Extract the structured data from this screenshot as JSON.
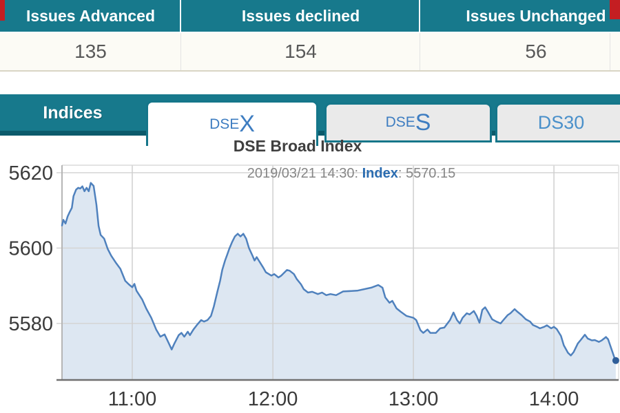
{
  "table": {
    "columns": [
      {
        "header": "Issues Advanced",
        "value": "135"
      },
      {
        "header": "Issues declined",
        "value": "154"
      },
      {
        "header": "Issues Unchanged",
        "value": "56"
      }
    ]
  },
  "tabs": {
    "panel_label": "Indices",
    "items": [
      {
        "small": "DSE",
        "big": "X",
        "active": true
      },
      {
        "small": "DSE",
        "big": "S",
        "active": false
      },
      {
        "label": "DS30",
        "active": false
      }
    ]
  },
  "chart": {
    "title": "DSE Broad Index",
    "subtitle_prefix": "2019/03/21 14:30: ",
    "subtitle_label": "Index",
    "subtitle_suffix": ": 5570.15"
  },
  "colors": {
    "teal": "#17798c",
    "teal_dark": "#0b5a6b",
    "red_fragment": "#c41e22",
    "tab_text_blue": "#3e7dc1",
    "ds30_text_blue": "#4a90ca",
    "index_label_blue": "#2b6cb0"
  },
  "chart_data": {
    "type": "area",
    "title": "DSE Broad Index",
    "subtitle": "2019/03/21 14:30: Index: 5570.15",
    "last_update": {
      "date": "2019/03/21",
      "time": "14:30",
      "label": "Index",
      "value": 5570.15
    },
    "xlabel": "",
    "ylabel": "",
    "x_unit": "hour-of-day",
    "xlim": [
      10.5,
      14.46
    ],
    "ylim": [
      5565,
      5622
    ],
    "grid": true,
    "legend": false,
    "x_ticks": [
      {
        "hour": 11,
        "label": "11:00"
      },
      {
        "hour": 12,
        "label": "12:00"
      },
      {
        "hour": 13,
        "label": "13:00"
      },
      {
        "hour": 14,
        "label": "14:00"
      }
    ],
    "y_ticks": [
      {
        "value": 5620,
        "label": "5620"
      },
      {
        "value": 5600,
        "label": "5600"
      },
      {
        "value": 5580,
        "label": "5580"
      }
    ],
    "colors": {
      "line": "#4f81bd",
      "area": "#dde7f2",
      "marker": "#2f5e99",
      "grid": "#d4d4d4",
      "grid_v": "#cfcfcf"
    },
    "series": [
      {
        "name": "DSEX Index",
        "points": [
          [
            10.5,
            5606.0
          ],
          [
            10.51,
            5607.5
          ],
          [
            10.525,
            5606.5
          ],
          [
            10.54,
            5608.4
          ],
          [
            10.555,
            5609.6
          ],
          [
            10.57,
            5610.7
          ],
          [
            10.582,
            5613.8
          ],
          [
            10.6,
            5615.5
          ],
          [
            10.615,
            5616.0
          ],
          [
            10.63,
            5615.8
          ],
          [
            10.645,
            5616.4
          ],
          [
            10.66,
            5615.1
          ],
          [
            10.675,
            5616.0
          ],
          [
            10.69,
            5615.1
          ],
          [
            10.705,
            5617.3
          ],
          [
            10.725,
            5616.5
          ],
          [
            10.745,
            5611.5
          ],
          [
            10.76,
            5605.9
          ],
          [
            10.775,
            5603.5
          ],
          [
            10.8,
            5602.5
          ],
          [
            10.825,
            5599.8
          ],
          [
            10.85,
            5598.0
          ],
          [
            10.885,
            5596.0
          ],
          [
            10.915,
            5594.5
          ],
          [
            10.95,
            5591.3
          ],
          [
            10.975,
            5590.4
          ],
          [
            11.0,
            5589.6
          ],
          [
            11.015,
            5590.5
          ],
          [
            11.03,
            5588.7
          ],
          [
            11.07,
            5586.4
          ],
          [
            11.1,
            5583.9
          ],
          [
            11.135,
            5581.5
          ],
          [
            11.17,
            5578.4
          ],
          [
            11.2,
            5576.5
          ],
          [
            11.23,
            5577.1
          ],
          [
            11.26,
            5574.7
          ],
          [
            11.28,
            5573.1
          ],
          [
            11.3,
            5574.7
          ],
          [
            11.33,
            5576.9
          ],
          [
            11.35,
            5577.5
          ],
          [
            11.37,
            5576.5
          ],
          [
            11.395,
            5577.8
          ],
          [
            11.41,
            5576.9
          ],
          [
            11.435,
            5578.4
          ],
          [
            11.46,
            5579.6
          ],
          [
            11.49,
            5580.9
          ],
          [
            11.51,
            5580.5
          ],
          [
            11.535,
            5580.9
          ],
          [
            11.56,
            5582.0
          ],
          [
            11.58,
            5584.5
          ],
          [
            11.605,
            5588.4
          ],
          [
            11.625,
            5591.3
          ],
          [
            11.64,
            5594.2
          ],
          [
            11.66,
            5596.7
          ],
          [
            11.675,
            5598.2
          ],
          [
            11.69,
            5599.8
          ],
          [
            11.71,
            5601.6
          ],
          [
            11.73,
            5603.1
          ],
          [
            11.75,
            5603.8
          ],
          [
            11.77,
            5603.1
          ],
          [
            11.79,
            5603.8
          ],
          [
            11.81,
            5602.5
          ],
          [
            11.83,
            5600.0
          ],
          [
            11.855,
            5598.0
          ],
          [
            11.87,
            5596.7
          ],
          [
            11.885,
            5597.6
          ],
          [
            11.9,
            5596.7
          ],
          [
            11.93,
            5594.9
          ],
          [
            11.95,
            5593.6
          ],
          [
            11.99,
            5592.7
          ],
          [
            12.01,
            5593.1
          ],
          [
            12.04,
            5592.2
          ],
          [
            12.06,
            5592.7
          ],
          [
            12.1,
            5594.2
          ],
          [
            12.12,
            5594.0
          ],
          [
            12.15,
            5593.1
          ],
          [
            12.17,
            5591.8
          ],
          [
            12.2,
            5590.4
          ],
          [
            12.22,
            5589.1
          ],
          [
            12.25,
            5588.2
          ],
          [
            12.28,
            5588.4
          ],
          [
            12.32,
            5587.8
          ],
          [
            12.35,
            5588.2
          ],
          [
            12.38,
            5587.5
          ],
          [
            12.41,
            5587.8
          ],
          [
            12.45,
            5587.5
          ],
          [
            12.5,
            5588.5
          ],
          [
            12.6,
            5588.7
          ],
          [
            12.7,
            5589.5
          ],
          [
            12.75,
            5590.2
          ],
          [
            12.78,
            5589.5
          ],
          [
            12.8,
            5586.9
          ],
          [
            12.83,
            5585.5
          ],
          [
            12.85,
            5586.0
          ],
          [
            12.88,
            5584.0
          ],
          [
            12.91,
            5583.1
          ],
          [
            12.95,
            5582.0
          ],
          [
            13.0,
            5581.5
          ],
          [
            13.02,
            5580.9
          ],
          [
            13.05,
            5578.2
          ],
          [
            13.07,
            5577.5
          ],
          [
            13.1,
            5578.4
          ],
          [
            13.12,
            5577.5
          ],
          [
            13.16,
            5577.5
          ],
          [
            13.19,
            5578.7
          ],
          [
            13.22,
            5578.9
          ],
          [
            13.26,
            5580.9
          ],
          [
            13.285,
            5582.9
          ],
          [
            13.31,
            5580.9
          ],
          [
            13.33,
            5580.0
          ],
          [
            13.35,
            5581.5
          ],
          [
            13.38,
            5582.7
          ],
          [
            13.4,
            5582.4
          ],
          [
            13.43,
            5583.3
          ],
          [
            13.45,
            5582.0
          ],
          [
            13.47,
            5580.2
          ],
          [
            13.49,
            5583.6
          ],
          [
            13.51,
            5584.3
          ],
          [
            13.53,
            5583.1
          ],
          [
            13.56,
            5581.1
          ],
          [
            13.59,
            5580.5
          ],
          [
            13.62,
            5580.0
          ],
          [
            13.64,
            5580.9
          ],
          [
            13.67,
            5582.2
          ],
          [
            13.69,
            5582.7
          ],
          [
            13.72,
            5583.8
          ],
          [
            13.74,
            5583.1
          ],
          [
            13.77,
            5582.2
          ],
          [
            13.8,
            5581.1
          ],
          [
            13.83,
            5580.5
          ],
          [
            13.85,
            5579.6
          ],
          [
            13.88,
            5579.1
          ],
          [
            13.9,
            5578.7
          ],
          [
            13.93,
            5579.1
          ],
          [
            13.95,
            5579.5
          ],
          [
            13.98,
            5578.7
          ],
          [
            14.0,
            5579.1
          ],
          [
            14.02,
            5578.5
          ],
          [
            14.05,
            5576.7
          ],
          [
            14.07,
            5574.2
          ],
          [
            14.1,
            5572.2
          ],
          [
            14.12,
            5571.5
          ],
          [
            14.14,
            5572.4
          ],
          [
            14.17,
            5574.7
          ],
          [
            14.19,
            5575.6
          ],
          [
            14.22,
            5577.0
          ],
          [
            14.24,
            5576.0
          ],
          [
            14.27,
            5575.5
          ],
          [
            14.29,
            5575.6
          ],
          [
            14.32,
            5575.1
          ],
          [
            14.34,
            5575.5
          ],
          [
            14.37,
            5576.4
          ],
          [
            14.385,
            5575.8
          ],
          [
            14.41,
            5573.1
          ],
          [
            14.43,
            5570.9
          ],
          [
            14.44,
            5570.15
          ]
        ]
      }
    ]
  }
}
